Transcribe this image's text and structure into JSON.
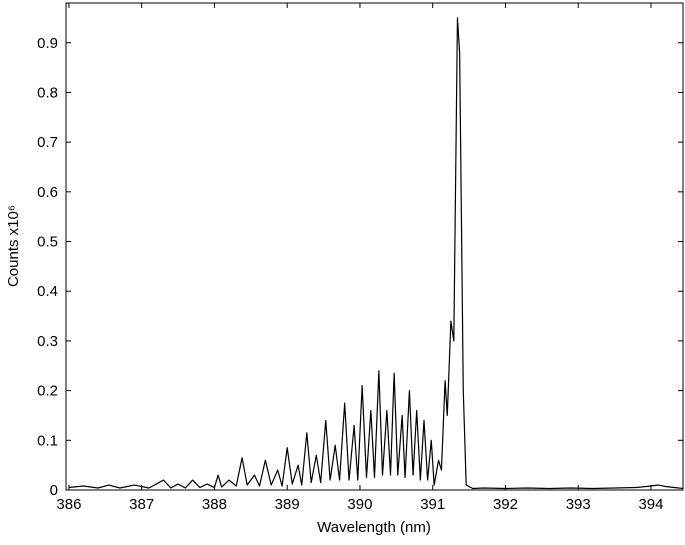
{
  "chart_data": {
    "type": "line",
    "x_label": "Wavelength (nm)",
    "y_label": "Counts x10⁶",
    "xlim": [
      385.96,
      394.44
    ],
    "ylim": [
      0,
      0.98
    ],
    "xticks": [
      386,
      387,
      388,
      389,
      390,
      391,
      392,
      393,
      394
    ],
    "yticks": [
      0,
      0.1,
      0.2,
      0.3,
      0.4,
      0.5,
      0.6,
      0.7,
      0.8,
      0.9
    ],
    "grid": false,
    "series": [
      {
        "color": "#000000",
        "x": [
          386.0,
          386.2,
          386.4,
          386.55,
          386.7,
          386.9,
          387.1,
          387.3,
          387.4,
          387.5,
          387.6,
          387.7,
          387.8,
          387.9,
          388.0,
          388.05,
          388.1,
          388.2,
          388.3,
          388.38,
          388.45,
          388.55,
          388.62,
          388.7,
          388.78,
          388.87,
          388.93,
          389.0,
          389.07,
          389.15,
          389.2,
          389.27,
          389.33,
          389.4,
          389.46,
          389.53,
          389.59,
          389.66,
          389.72,
          389.79,
          389.85,
          389.92,
          389.97,
          390.03,
          390.09,
          390.15,
          390.2,
          390.26,
          390.31,
          390.37,
          390.42,
          390.47,
          390.52,
          390.58,
          390.62,
          390.68,
          390.73,
          390.78,
          390.83,
          390.88,
          390.93,
          390.98,
          391.02,
          391.08,
          391.12,
          391.17,
          391.2,
          391.25,
          391.29,
          391.34,
          391.37,
          391.42,
          391.46,
          391.55,
          391.7,
          392.0,
          392.3,
          392.6,
          392.9,
          393.2,
          393.5,
          393.8,
          394.0,
          394.1,
          394.2,
          394.44
        ],
        "values": [
          0.005,
          0.008,
          0.004,
          0.01,
          0.004,
          0.01,
          0.004,
          0.02,
          0.004,
          0.012,
          0.004,
          0.02,
          0.005,
          0.012,
          0.005,
          0.03,
          0.006,
          0.02,
          0.008,
          0.065,
          0.01,
          0.03,
          0.008,
          0.06,
          0.01,
          0.04,
          0.008,
          0.085,
          0.012,
          0.05,
          0.01,
          0.115,
          0.015,
          0.07,
          0.015,
          0.14,
          0.02,
          0.09,
          0.02,
          0.175,
          0.02,
          0.13,
          0.02,
          0.21,
          0.025,
          0.16,
          0.025,
          0.24,
          0.03,
          0.16,
          0.03,
          0.235,
          0.03,
          0.15,
          0.025,
          0.2,
          0.03,
          0.16,
          0.02,
          0.14,
          0.02,
          0.1,
          0.01,
          0.06,
          0.04,
          0.22,
          0.15,
          0.34,
          0.3,
          0.95,
          0.88,
          0.2,
          0.01,
          0.003,
          0.004,
          0.003,
          0.004,
          0.003,
          0.004,
          0.003,
          0.004,
          0.005,
          0.008,
          0.01,
          0.007,
          0.003
        ]
      }
    ]
  }
}
